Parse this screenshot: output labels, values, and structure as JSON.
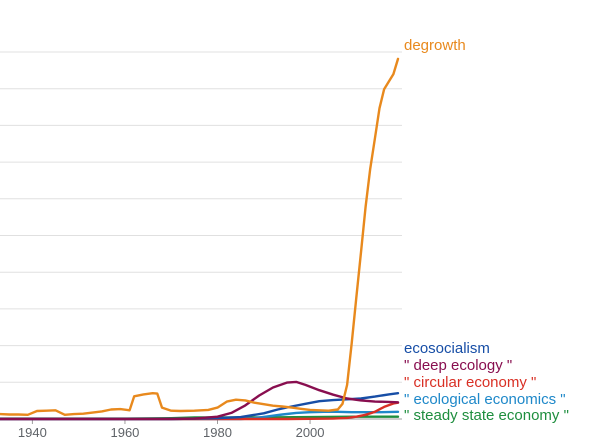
{
  "chart_data": {
    "type": "line",
    "xlabel": "",
    "ylabel": "",
    "xlim": [
      1933,
      2019
    ],
    "ylim": [
      0,
      100
    ],
    "grid": true,
    "x_ticks": [
      1940,
      1960,
      1980,
      2000
    ],
    "x_tick_labels": [
      "1940",
      "1960",
      "1980",
      "2000"
    ],
    "series": [
      {
        "name": "degrowth",
        "color": "#e8891d",
        "x": [
          1933,
          1935,
          1937,
          1939,
          1941,
          1943,
          1945,
          1947,
          1949,
          1951,
          1953,
          1955,
          1957,
          1959,
          1961,
          1962,
          1964,
          1966,
          1967,
          1968,
          1970,
          1972,
          1975,
          1978,
          1980,
          1982,
          1984,
          1986,
          1988,
          1990,
          1992,
          1994,
          1996,
          1998,
          2000,
          2002,
          2004,
          2006,
          2007,
          2008,
          2009,
          2010,
          2011,
          2012,
          2013,
          2014,
          2015,
          2016,
          2017,
          2018,
          2019
        ],
        "y": [
          1.3,
          1.2,
          1.2,
          1.1,
          2.1,
          2.2,
          2.3,
          1.1,
          1.3,
          1.4,
          1.7,
          2.0,
          2.5,
          2.6,
          2.3,
          6.0,
          6.5,
          6.8,
          6.7,
          3.0,
          2.2,
          2.1,
          2.2,
          2.4,
          3.0,
          4.6,
          5.1,
          4.9,
          4.3,
          3.9,
          3.5,
          3.3,
          3.0,
          2.7,
          2.4,
          2.3,
          2.2,
          2.5,
          4.0,
          9.0,
          20.0,
          32.0,
          44.0,
          56.0,
          66.0,
          74.0,
          82.0,
          87.0,
          89.0,
          91.0,
          95.0
        ]
      },
      {
        "name": "ecosocialism",
        "color": "#174ea6",
        "x": [
          1933,
          1970,
          1980,
          1985,
          1990,
          1993,
          1996,
          1999,
          2002,
          2005,
          2008,
          2011,
          2014,
          2017,
          2019
        ],
        "y": [
          0,
          0,
          0.2,
          0.5,
          1.5,
          2.5,
          3.3,
          4.0,
          4.7,
          5.0,
          5.2,
          5.4,
          5.9,
          6.5,
          6.8
        ]
      },
      {
        "name": "\" deep ecology \"",
        "color": "#880e4f",
        "x": [
          1933,
          1970,
          1975,
          1980,
          1983,
          1986,
          1989,
          1992,
          1995,
          1997,
          1999,
          2002,
          2005,
          2008,
          2011,
          2014,
          2017,
          2019
        ],
        "y": [
          0,
          0,
          0.1,
          0.6,
          1.6,
          3.6,
          6.2,
          8.3,
          9.6,
          9.8,
          9.0,
          7.6,
          6.4,
          5.4,
          4.9,
          4.6,
          4.5,
          4.4
        ]
      },
      {
        "name": "\" circular economy \"",
        "color": "#d93025",
        "x": [
          1933,
          1995,
          2000,
          2005,
          2008,
          2010,
          2012,
          2014,
          2016,
          2018,
          2019
        ],
        "y": [
          0,
          0,
          0.05,
          0.1,
          0.3,
          0.6,
          1.1,
          1.9,
          3.2,
          4.1,
          4.3
        ]
      },
      {
        "name": "\" ecological economics \"",
        "color": "#1e88c9",
        "x": [
          1933,
          1985,
          1988,
          1991,
          1994,
          1997,
          2000,
          2003,
          2006,
          2009,
          2012,
          2015,
          2019
        ],
        "y": [
          0,
          0,
          0.2,
          0.7,
          1.2,
          1.6,
          1.8,
          1.9,
          1.9,
          1.8,
          1.8,
          1.8,
          1.9
        ]
      },
      {
        "name": "\" steady state economy \"",
        "color": "#1e8e3e",
        "x": [
          1933,
          1960,
          1970,
          1975,
          1980,
          1990,
          2000,
          2010,
          2019
        ],
        "y": [
          0.1,
          0.1,
          0.2,
          0.4,
          0.4,
          0.4,
          0.5,
          0.6,
          0.6
        ]
      }
    ]
  }
}
